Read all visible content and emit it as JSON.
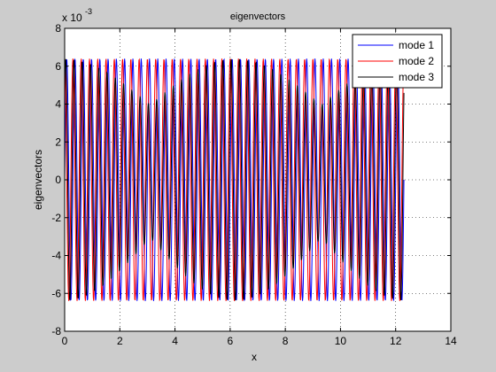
{
  "chart_data": {
    "type": "line",
    "title": "eigenvectors",
    "xlabel": "x",
    "ylabel": "eigenvectors",
    "exponent_label": "x 10",
    "exponent_value": "-3",
    "xlim": [
      0,
      14
    ],
    "ylim": [
      -8,
      8
    ],
    "xticks": [
      0,
      2,
      4,
      6,
      8,
      10,
      12,
      14
    ],
    "yticks": [
      -8,
      -6,
      -4,
      -2,
      0,
      2,
      4,
      6,
      8
    ],
    "grid": "on",
    "legend_position": "top-right",
    "x_end": 12.3,
    "series": [
      {
        "name": "mode 1",
        "color": "#0000ff",
        "amplitude": 6.4,
        "period": 0.3,
        "phase": 0.0,
        "modulation": 0.0
      },
      {
        "name": "mode 2",
        "color": "#ff0000",
        "amplitude": 6.4,
        "period": 0.3,
        "phase": 1.5708,
        "modulation": 0.0
      },
      {
        "name": "mode 3",
        "color": "#000000",
        "amplitude": 6.4,
        "period": 0.3,
        "phase": 0.8,
        "modulation": 1.0
      }
    ]
  }
}
